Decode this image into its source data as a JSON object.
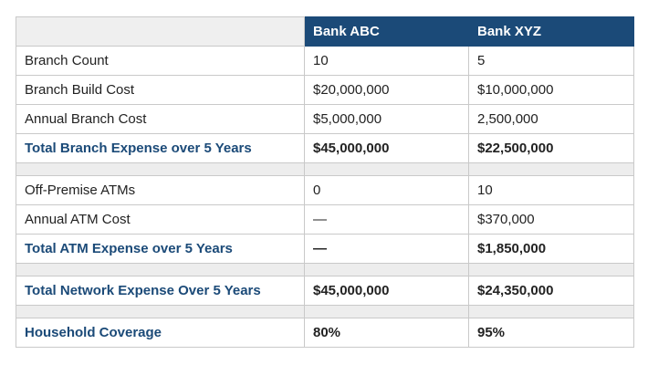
{
  "header": {
    "columns": [
      "Bank ABC",
      "Bank XYZ"
    ]
  },
  "sections": [
    [
      {
        "label": "Branch Count",
        "values": [
          "10",
          "5"
        ]
      },
      {
        "label": "Branch Build Cost",
        "values": [
          "$20,000,000",
          "$10,000,000"
        ]
      },
      {
        "label": "Annual Branch Cost",
        "values": [
          "$5,000,000",
          "2,500,000"
        ]
      },
      {
        "label": "Total Branch Expense over 5 Years",
        "values": [
          "$45,000,000",
          "$22,500,000"
        ],
        "total": true
      }
    ],
    [
      {
        "label": "Off-Premise ATMs",
        "values": [
          "0",
          "10"
        ]
      },
      {
        "label": "Annual ATM Cost",
        "values": [
          "—",
          "$370,000"
        ]
      },
      {
        "label": "Total ATM Expense over 5 Years",
        "values": [
          "—",
          "$1,850,000"
        ],
        "total": true
      }
    ],
    [
      {
        "label": "Total Network Expense Over 5 Years",
        "values": [
          "$45,000,000",
          "$24,350,000"
        ],
        "total": true
      }
    ],
    [
      {
        "label": "Household Coverage",
        "values": [
          "80%",
          "95%"
        ],
        "total": true
      }
    ]
  ]
}
